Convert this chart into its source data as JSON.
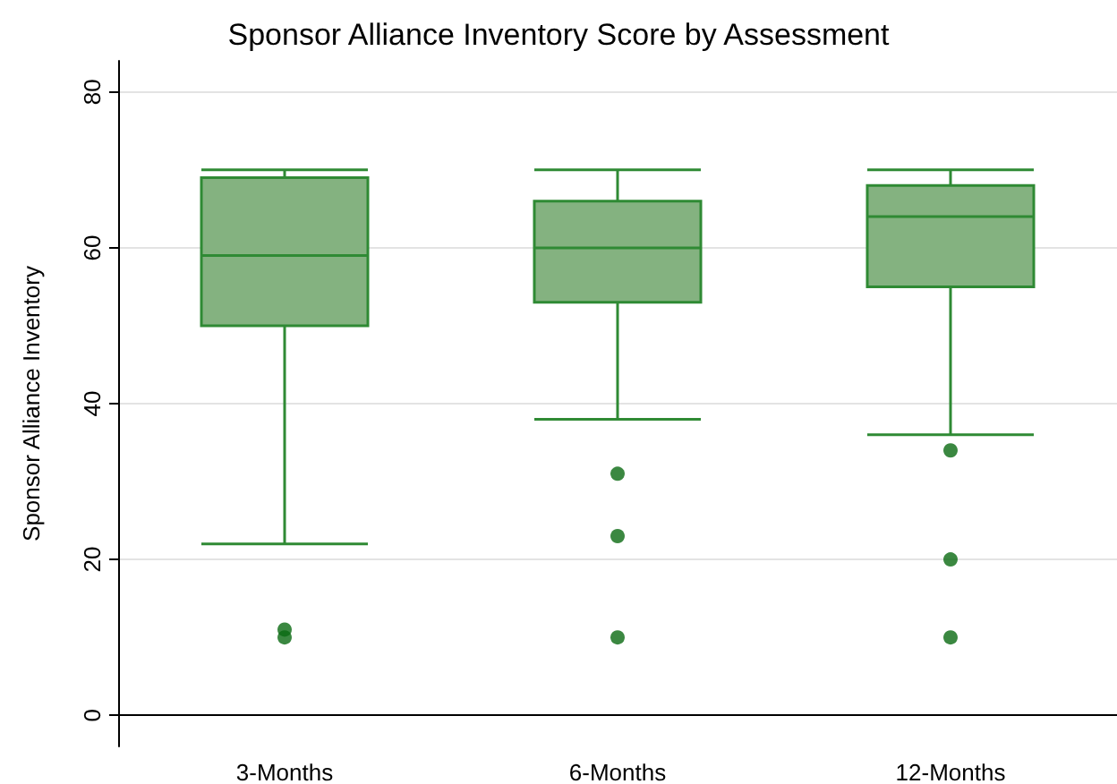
{
  "chart_data": {
    "type": "box",
    "title": "Sponsor Alliance Inventory Score by Assessment",
    "ylabel": "Sponsor Alliance Inventory",
    "categories": [
      "3-Months",
      "6-Months",
      "12-Months"
    ],
    "series": [
      {
        "color": "#84b280",
        "boxes": [
          {
            "low": 22,
            "q1": 50,
            "median": 59,
            "q3": 69,
            "high": 70,
            "outliers": [
              11,
              10
            ]
          },
          {
            "low": 38,
            "q1": 53,
            "median": 60,
            "q3": 66,
            "high": 70,
            "outliers": [
              31,
              23,
              10
            ]
          },
          {
            "low": 36,
            "q1": 55,
            "median": 64,
            "q3": 68,
            "high": 70,
            "outliers": [
              34,
              20,
              10
            ]
          }
        ]
      }
    ],
    "ylim": [
      -4,
      84
    ],
    "yticks": [
      0,
      20,
      40,
      60,
      80
    ],
    "grid": "y",
    "marker": "circle"
  }
}
